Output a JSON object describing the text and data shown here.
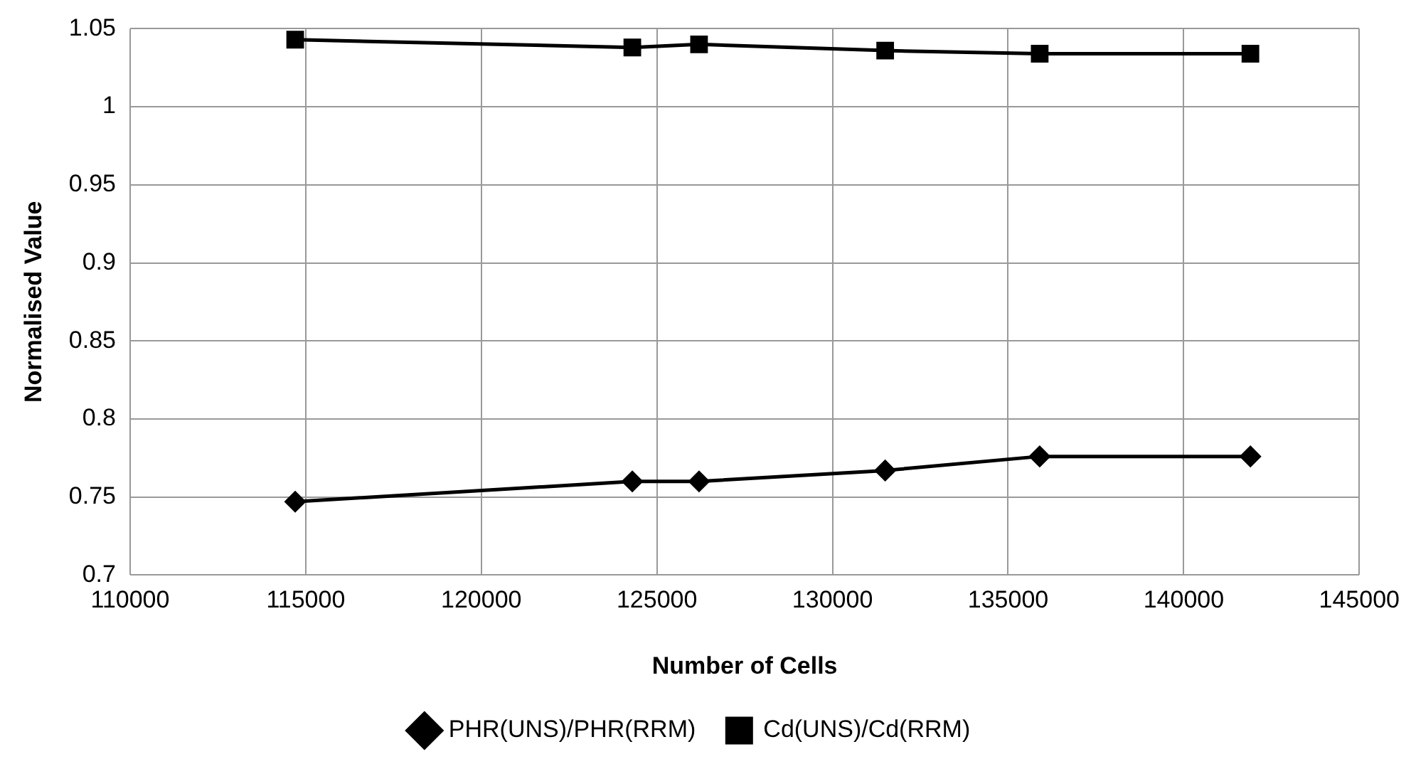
{
  "chart_data": {
    "type": "line",
    "xlabel": "Number of Cells",
    "ylabel": "Normalised Value",
    "x": [
      114700,
      124300,
      126200,
      131500,
      135900,
      141900
    ],
    "series": [
      {
        "name": "PHR(UNS)/PHR(RRM)",
        "color": "#000000",
        "marker": "diamond",
        "values": [
          0.747,
          0.76,
          0.76,
          0.767,
          0.776,
          0.776
        ]
      },
      {
        "name": "Cd(UNS)/Cd(RRM)",
        "color": "#000000",
        "marker": "square",
        "values": [
          1.043,
          1.038,
          1.04,
          1.036,
          1.034,
          1.034
        ]
      }
    ],
    "xlim": [
      110000,
      145000
    ],
    "xticks": [
      110000,
      115000,
      120000,
      125000,
      130000,
      135000,
      140000,
      145000
    ],
    "ylim": [
      0.7,
      1.05
    ],
    "yticks": [
      0.7,
      0.75,
      0.8,
      0.85,
      0.9,
      0.95,
      1,
      1.05
    ],
    "grid": true,
    "legend": "bottom",
    "line_style": "solid"
  }
}
